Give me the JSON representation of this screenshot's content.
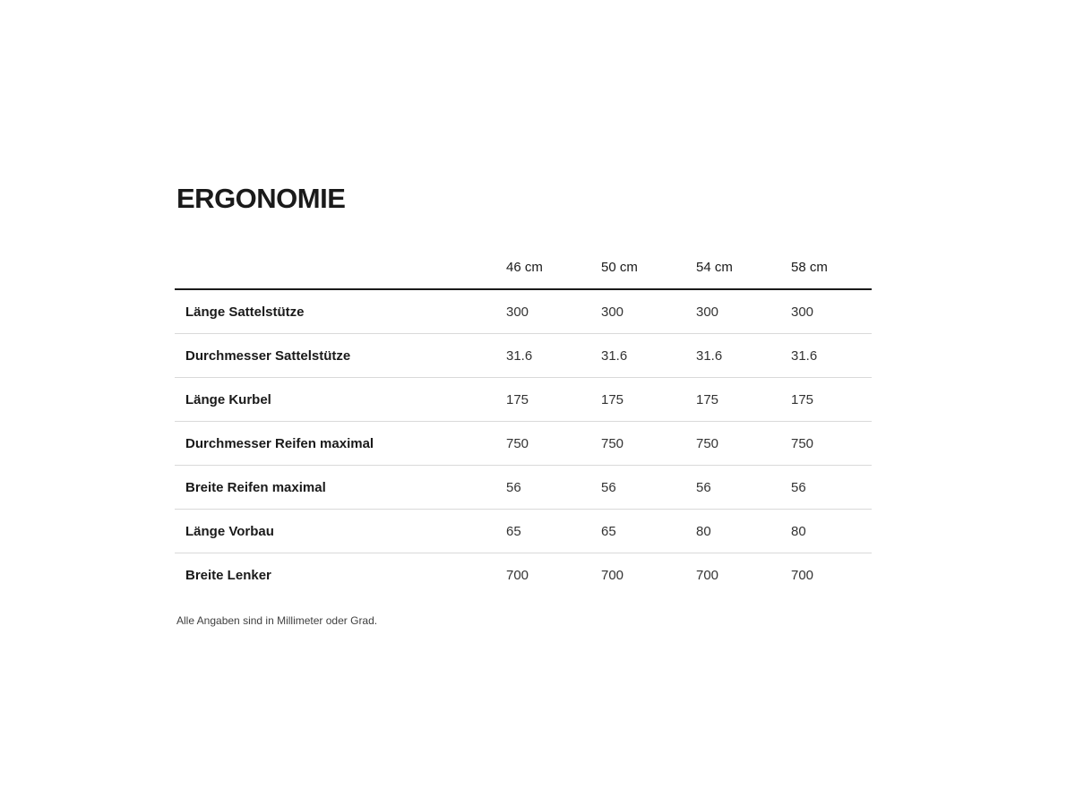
{
  "section": {
    "title": "ERGONOMIE",
    "footnote": "Alle Angaben sind in Millimeter oder Grad."
  },
  "table": {
    "columns": [
      "46 cm",
      "50 cm",
      "54 cm",
      "58 cm"
    ],
    "rows": [
      {
        "label": "Länge Sattelstütze",
        "values": [
          "300",
          "300",
          "300",
          "300"
        ]
      },
      {
        "label": "Durchmesser Sattelstütze",
        "values": [
          "31.6",
          "31.6",
          "31.6",
          "31.6"
        ]
      },
      {
        "label": "Länge Kurbel",
        "values": [
          "175",
          "175",
          "175",
          "175"
        ]
      },
      {
        "label": "Durchmesser Reifen maximal",
        "values": [
          "750",
          "750",
          "750",
          "750"
        ]
      },
      {
        "label": "Breite Reifen maximal",
        "values": [
          "56",
          "56",
          "56",
          "56"
        ]
      },
      {
        "label": "Länge Vorbau",
        "values": [
          "65",
          "65",
          "80",
          "80"
        ]
      },
      {
        "label": "Breite Lenker",
        "values": [
          "700",
          "700",
          "700",
          "700"
        ]
      }
    ]
  },
  "colors": {
    "heading_text": "#1a1a1a",
    "value_text": "#333333",
    "rule_heavy": "#1a1a1a",
    "rule_light": "#d9d9d9",
    "background": "#ffffff"
  },
  "chart_data": {
    "type": "table",
    "title": "ERGONOMIE",
    "categories": [
      "46 cm",
      "50 cm",
      "54 cm",
      "58 cm"
    ],
    "series": [
      {
        "name": "Länge Sattelstütze",
        "values": [
          300,
          300,
          300,
          300
        ]
      },
      {
        "name": "Durchmesser Sattelstütze",
        "values": [
          31.6,
          31.6,
          31.6,
          31.6
        ]
      },
      {
        "name": "Länge Kurbel",
        "values": [
          175,
          175,
          175,
          175
        ]
      },
      {
        "name": "Durchmesser Reifen maximal",
        "values": [
          750,
          750,
          750,
          750
        ]
      },
      {
        "name": "Breite Reifen maximal",
        "values": [
          56,
          56,
          56,
          56
        ]
      },
      {
        "name": "Länge Vorbau",
        "values": [
          65,
          65,
          80,
          80
        ]
      },
      {
        "name": "Breite Lenker",
        "values": [
          700,
          700,
          700,
          700
        ]
      }
    ],
    "note": "Alle Angaben sind in Millimeter oder Grad."
  }
}
